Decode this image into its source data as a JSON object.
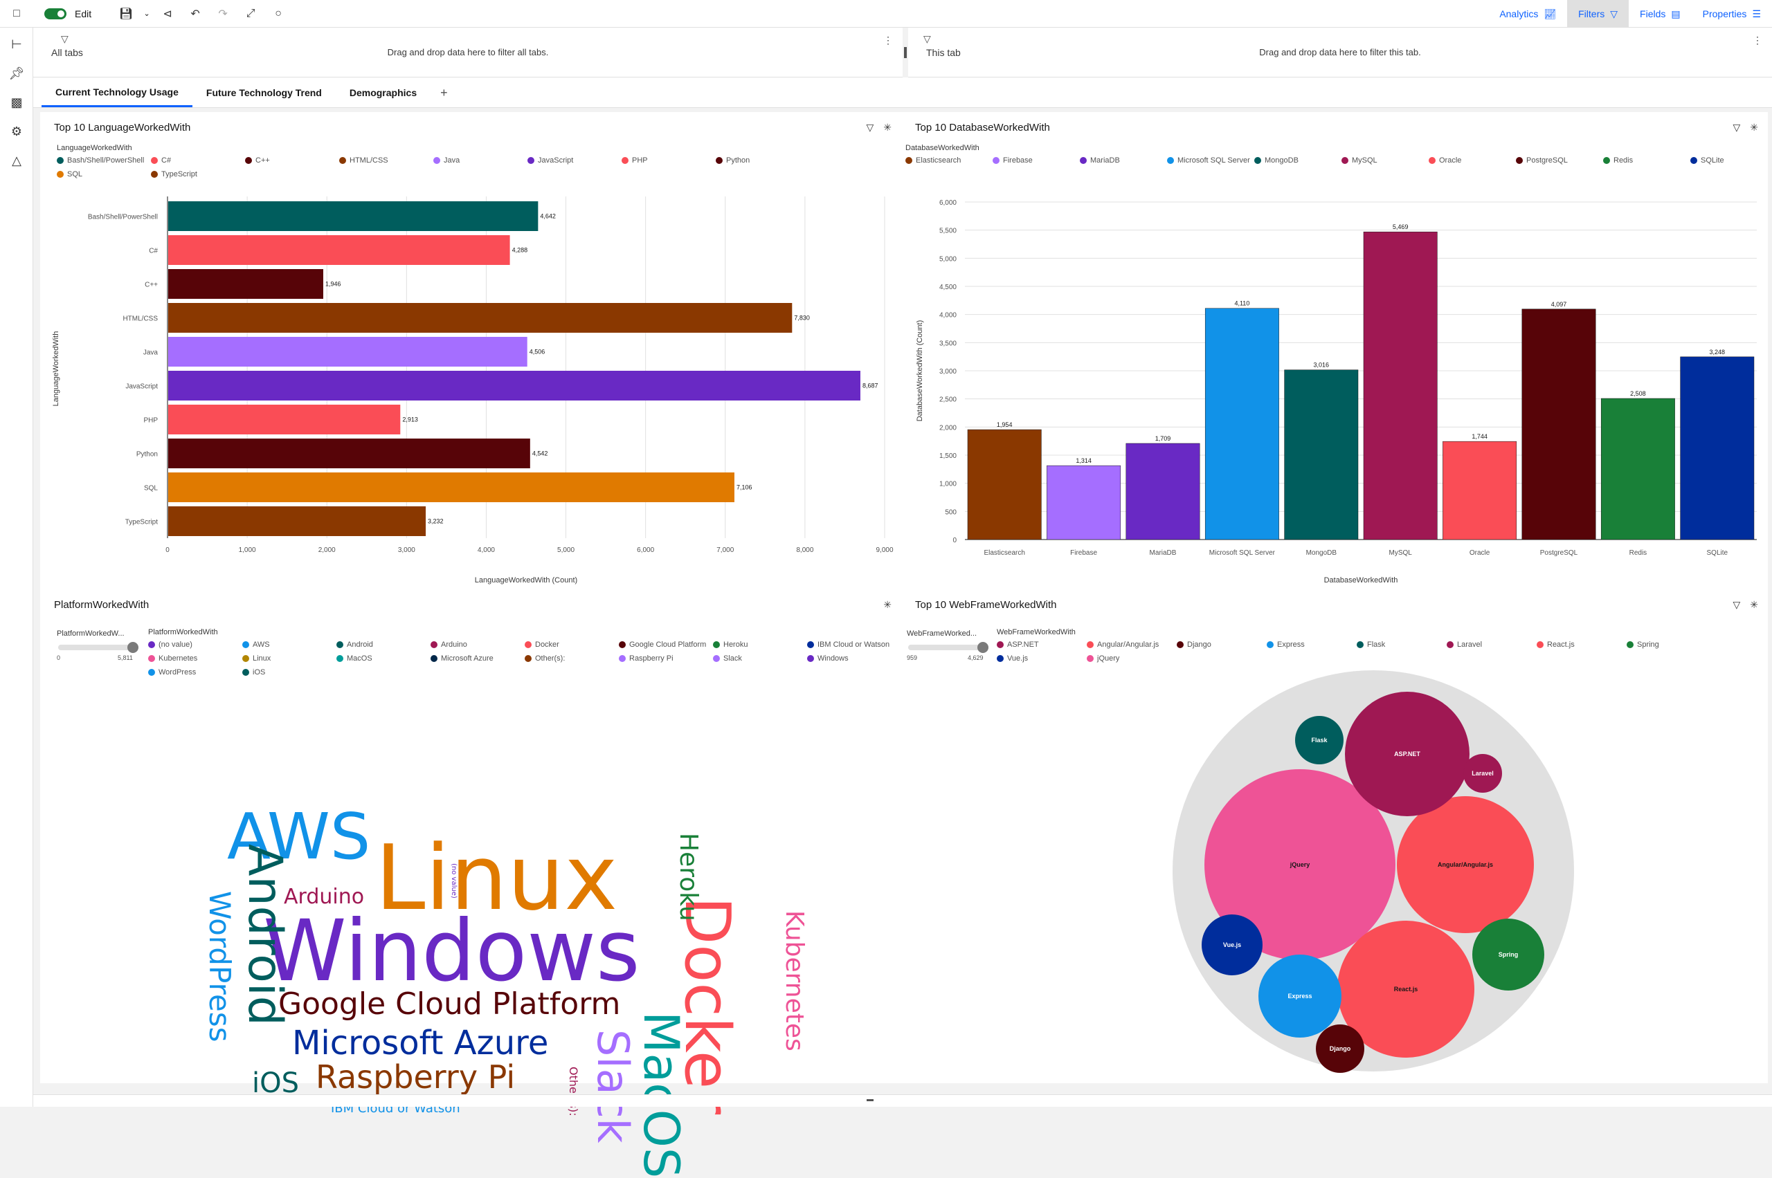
{
  "toolbar": {
    "edit_label": "Edit",
    "right": [
      {
        "label": "Analytics",
        "icon": "analytics-icon",
        "active": false
      },
      {
        "label": "Filters",
        "icon": "filter-icon",
        "active": true
      },
      {
        "label": "Fields",
        "icon": "fields-icon",
        "active": false
      },
      {
        "label": "Properties",
        "icon": "properties-icon",
        "active": false
      }
    ]
  },
  "filters": {
    "all_tabs_label": "All tabs",
    "all_tabs_msg": "Drag and drop data here to filter all tabs.",
    "this_tab_label": "This tab",
    "this_tab_msg": "Drag and drop data here to filter this tab."
  },
  "tabs": [
    {
      "label": "Current Technology Usage",
      "active": true
    },
    {
      "label": "Future Technology Trend",
      "active": false
    },
    {
      "label": "Demographics",
      "active": false
    }
  ],
  "widgets": {
    "language": {
      "title": "Top 10 LanguageWorkedWith",
      "legend_title": "LanguageWorkedWith",
      "ylabel": "LanguageWorkedWith",
      "xlabel": "LanguageWorkedWith (Count)"
    },
    "database": {
      "title": "Top 10 DatabaseWorkedWith",
      "legend_title": "DatabaseWorkedWith",
      "ylabel": "DatabaseWorkedWith (Count)",
      "xlabel": "DatabaseWorkedWith"
    },
    "platform": {
      "title": "PlatformWorkedWith",
      "legend_title": "PlatformWorkedWith",
      "slider_label": "PlatformWorkedW...",
      "slider_min": "0",
      "slider_max": "5,811"
    },
    "webframe": {
      "title": "Top 10 WebFrameWorkedWith",
      "legend_title": "WebFrameWorkedWith",
      "slider_label": "WebFrameWorked...",
      "slider_min": "959",
      "slider_max": "4,629"
    }
  },
  "chart_data": [
    {
      "type": "bar",
      "orientation": "horizontal",
      "title": "Top 10 LanguageWorkedWith",
      "xlabel": "LanguageWorkedWith (Count)",
      "ylabel": "LanguageWorkedWith",
      "categories": [
        "Bash/Shell/PowerShell",
        "C#",
        "C++",
        "HTML/CSS",
        "Java",
        "JavaScript",
        "PHP",
        "Python",
        "SQL",
        "TypeScript"
      ],
      "values": [
        4642,
        4288,
        1946,
        7830,
        4506,
        8687,
        2913,
        4542,
        7106,
        3232
      ],
      "value_labels": [
        "4,642",
        "4,288",
        "1,946",
        "7,830",
        "4,506",
        "8,687",
        "2,913",
        "4,542",
        "7,106",
        "3,232"
      ],
      "colors": [
        "#005d5d",
        "#fa4d56",
        "#570408",
        "#8a3800",
        "#a56eff",
        "#6929c4",
        "#fa4d56",
        "#570408",
        "#e07a00",
        "#8a3800"
      ],
      "xlim": [
        0,
        9000
      ],
      "xticks": [
        "0",
        "1,000",
        "2,000",
        "3,000",
        "4,000",
        "5,000",
        "6,000",
        "7,000",
        "8,000",
        "9,000"
      ],
      "grid": true,
      "legend_position": "top-left"
    },
    {
      "type": "bar",
      "orientation": "vertical",
      "title": "Top 10 DatabaseWorkedWith",
      "xlabel": "DatabaseWorkedWith",
      "ylabel": "DatabaseWorkedWith (Count)",
      "categories": [
        "Elasticsearch",
        "Firebase",
        "MariaDB",
        "Microsoft SQL Server",
        "MongoDB",
        "MySQL",
        "Oracle",
        "PostgreSQL",
        "Redis",
        "SQLite"
      ],
      "values": [
        1954,
        1314,
        1709,
        4110,
        3016,
        5469,
        1744,
        4097,
        2508,
        3248
      ],
      "value_labels": [
        "1,954",
        "1,314",
        "1,709",
        "4,110",
        "3,016",
        "5,469",
        "1,744",
        "4,097",
        "2,508",
        "3,248"
      ],
      "colors": [
        "#8a3800",
        "#a56eff",
        "#6929c4",
        "#1192e8",
        "#005d5d",
        "#9f1853",
        "#fa4d56",
        "#570408",
        "#198038",
        "#002d9c"
      ],
      "ylim": [
        0,
        6000
      ],
      "yticks": [
        "0",
        "500",
        "1,000",
        "1,500",
        "2,000",
        "2,500",
        "3,000",
        "3,500",
        "4,000",
        "4,500",
        "5,000",
        "5,500",
        "6,000"
      ],
      "grid": true,
      "legend_position": "top-left"
    },
    {
      "type": "wordcloud",
      "title": "PlatformWorkedWith",
      "words": [
        {
          "text": "Windows",
          "color": "#6929c4"
        },
        {
          "text": "Linux",
          "color": "#e07a00"
        },
        {
          "text": "Docker",
          "color": "#fa4d56"
        },
        {
          "text": "AWS",
          "color": "#1192e8"
        },
        {
          "text": "Android",
          "color": "#005d5d"
        },
        {
          "text": "MacOS",
          "color": "#009d9a"
        },
        {
          "text": "Slack",
          "color": "#a56eff"
        },
        {
          "text": "Google Cloud Platform",
          "color": "#570408"
        },
        {
          "text": "Microsoft Azure",
          "color": "#002d9c"
        },
        {
          "text": "Raspberry Pi",
          "color": "#8a3800"
        },
        {
          "text": "Kubernetes",
          "color": "#ee5396"
        },
        {
          "text": "WordPress",
          "color": "#1192e8"
        },
        {
          "text": "Heroku",
          "color": "#198038"
        },
        {
          "text": "Arduino",
          "color": "#9f1853"
        },
        {
          "text": "iOS",
          "color": "#005d5d"
        },
        {
          "text": "IBM Cloud or Watson",
          "color": "#1192e8"
        },
        {
          "text": "Other(s):",
          "color": "#9f1853"
        },
        {
          "text": "(no value)",
          "color": "#6929c4"
        }
      ],
      "legend": [
        {
          "label": "(no value)",
          "color": "#6929c4"
        },
        {
          "label": "AWS",
          "color": "#1192e8"
        },
        {
          "label": "Android",
          "color": "#005d5d"
        },
        {
          "label": "Arduino",
          "color": "#9f1853"
        },
        {
          "label": "Docker",
          "color": "#fa4d56"
        },
        {
          "label": "Google Cloud Platform",
          "color": "#570408"
        },
        {
          "label": "Heroku",
          "color": "#198038"
        },
        {
          "label": "IBM Cloud or Watson",
          "color": "#002d9c"
        },
        {
          "label": "Kubernetes",
          "color": "#ee5396"
        },
        {
          "label": "Linux",
          "color": "#b28600"
        },
        {
          "label": "MacOS",
          "color": "#009d9a"
        },
        {
          "label": "Microsoft Azure",
          "color": "#012749"
        },
        {
          "label": "Other(s):",
          "color": "#8a3800"
        },
        {
          "label": "Raspberry Pi",
          "color": "#a56eff"
        },
        {
          "label": "Slack",
          "color": "#a56eff"
        },
        {
          "label": "Windows",
          "color": "#6929c4"
        },
        {
          "label": "WordPress",
          "color": "#1192e8"
        },
        {
          "label": "iOS",
          "color": "#005d5d"
        }
      ]
    },
    {
      "type": "bubble",
      "title": "Top 10 WebFrameWorkedWith",
      "items": [
        {
          "label": "jQuery",
          "color": "#ee5396"
        },
        {
          "label": "React.js",
          "color": "#fa4d56"
        },
        {
          "label": "Angular/Angular.js",
          "color": "#fa4d56"
        },
        {
          "label": "ASP.NET",
          "color": "#9f1853"
        },
        {
          "label": "Express",
          "color": "#1192e8"
        },
        {
          "label": "Spring",
          "color": "#198038"
        },
        {
          "label": "Vue.js",
          "color": "#002d9c"
        },
        {
          "label": "Django",
          "color": "#570408"
        },
        {
          "label": "Flask",
          "color": "#005d5d"
        },
        {
          "label": "Laravel",
          "color": "#9f1853"
        }
      ],
      "legend": [
        {
          "label": "ASP.NET",
          "color": "#9f1853"
        },
        {
          "label": "Angular/Angular.js",
          "color": "#fa4d56"
        },
        {
          "label": "Django",
          "color": "#570408"
        },
        {
          "label": "Express",
          "color": "#1192e8"
        },
        {
          "label": "Flask",
          "color": "#005d5d"
        },
        {
          "label": "Laravel",
          "color": "#9f1853"
        },
        {
          "label": "React.js",
          "color": "#fa4d56"
        },
        {
          "label": "Spring",
          "color": "#198038"
        },
        {
          "label": "Vue.js",
          "color": "#002d9c"
        },
        {
          "label": "jQuery",
          "color": "#ee5396"
        }
      ]
    }
  ]
}
